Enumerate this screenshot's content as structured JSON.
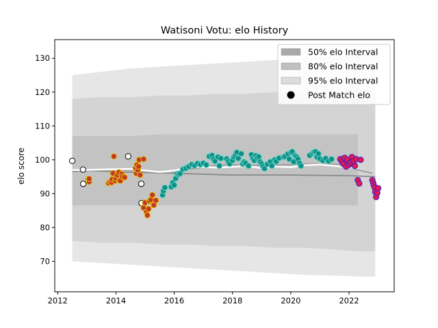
{
  "chart_data": {
    "type": "scatter",
    "title": "Watisoni Votu: elo History",
    "xlabel": "",
    "ylabel": "elo score",
    "xlim": [
      2011.9,
      2023.55
    ],
    "ylim": [
      61,
      135.5
    ],
    "x_ticks": [
      2012,
      2014,
      2016,
      2018,
      2020,
      2022
    ],
    "y_ticks": [
      70,
      80,
      90,
      100,
      110,
      120,
      130
    ],
    "grid": false,
    "legend": {
      "placement": "top-right",
      "entries": [
        {
          "label": "50% elo Interval",
          "kind": "patch",
          "color": "#a9a9a9"
        },
        {
          "label": "80% elo Interval",
          "kind": "patch",
          "color": "#bfbfbf"
        },
        {
          "label": "95% elo Interval",
          "kind": "patch",
          "color": "#dcdcdc"
        },
        {
          "label": "Post Match elo",
          "kind": "marker",
          "color": "#000000"
        }
      ]
    },
    "bands": [
      {
        "name": "95% elo Interval",
        "color": "#e2e2e2",
        "x": [
          2012.5,
          2013.5,
          2014.5,
          2015.5,
          2016.5,
          2017.5,
          2018.5,
          2019.5,
          2020.5,
          2021.5,
          2022.3,
          2022.9
        ],
        "upper": [
          125,
          126,
          127,
          127.5,
          128,
          128.5,
          129,
          129.5,
          130,
          130.5,
          131,
          131
        ],
        "lower": [
          70,
          69.5,
          69,
          68.5,
          68,
          67.5,
          67,
          66.5,
          66,
          65.8,
          65.5,
          65.5
        ]
      },
      {
        "name": "80% elo Interval",
        "color": "#d0d0d0",
        "x": [
          2012.5,
          2013.5,
          2014.5,
          2015.5,
          2016.5,
          2017.5,
          2018.5,
          2019.5,
          2020.5,
          2021.5,
          2022.3,
          2022.9
        ],
        "upper": [
          118,
          118.5,
          118.5,
          119,
          119,
          119.5,
          119.5,
          120,
          120,
          120,
          121,
          120
        ],
        "lower": [
          76,
          75.5,
          75.5,
          75,
          75,
          74.5,
          74.5,
          74,
          74,
          73.5,
          73,
          73
        ]
      },
      {
        "name": "50% elo Interval",
        "color": "#bfbfbf",
        "x": [
          2012.5,
          2013.5,
          2014.5,
          2015.5,
          2016.5,
          2017.5,
          2018.5,
          2019.5,
          2020.5,
          2021.5,
          2022.3
        ],
        "upper": [
          107,
          107,
          107,
          107.5,
          107.5,
          107.5,
          107.5,
          107.5,
          107.5,
          107.5,
          107.5
        ],
        "lower": [
          86.5,
          86.5,
          86.5,
          86.5,
          86.5,
          86.5,
          86.5,
          86.5,
          86.5,
          86.5,
          86.5
        ]
      }
    ],
    "lines": [
      {
        "name": "mean",
        "color": "#888888",
        "x": [
          2012.5,
          2014.0,
          2016.0,
          2018.0,
          2020.0,
          2022.0,
          2022.9
        ],
        "y": [
          97,
          96.5,
          96,
          95.5,
          95.5,
          95.3,
          95
        ]
      },
      {
        "name": "trend",
        "color": "#999999",
        "x": [
          2012.5,
          2013.5,
          2014.5,
          2015.2,
          2015.8,
          2016.3,
          2016.8,
          2017.5,
          2018.2,
          2019.0,
          2019.8,
          2020.5,
          2021.2,
          2021.8,
          2022.3,
          2022.8
        ],
        "y": [
          96.5,
          97,
          97,
          96.5,
          96,
          97,
          97.5,
          98.5,
          98.5,
          98.3,
          98.5,
          98.8,
          98.8,
          98.5,
          97,
          96
        ]
      },
      {
        "name": "elo",
        "color": "#ffffff",
        "x": [
          2012.5,
          2013.0,
          2013.8,
          2014.5,
          2015.0,
          2015.5,
          2016.0,
          2016.5,
          2017.0,
          2017.5,
          2018.0,
          2018.5,
          2019.0,
          2019.5,
          2020.0,
          2020.5,
          2021.0,
          2021.5,
          2022.0,
          2022.3
        ],
        "y": [
          97,
          97,
          97.2,
          97.3,
          96.8,
          96.4,
          96.8,
          97.8,
          97.9,
          97.7,
          97.9,
          98.2,
          97.5,
          98,
          97.8,
          98.4,
          98.6,
          98.2,
          97.8,
          97.5
        ]
      }
    ],
    "series": [
      {
        "color": "#ffffff",
        "edge": "#000000",
        "points": [
          [
            2012.5,
            99.7
          ],
          [
            2012.87,
            97.1
          ],
          [
            2012.88,
            92.9
          ],
          [
            2014.42,
            101
          ],
          [
            2014.87,
            92.9
          ],
          [
            2014.88,
            87.2
          ]
        ]
      },
      {
        "color": "#c0392b",
        "edge": "#e6c200",
        "points": [
          [
            2013.05,
            94.2
          ],
          [
            2013.08,
            93.5
          ],
          [
            2013.08,
            94.4
          ],
          [
            2013.75,
            93.1
          ],
          [
            2013.8,
            93.5
          ],
          [
            2013.85,
            93.3
          ],
          [
            2013.87,
            94.2
          ],
          [
            2013.9,
            96.0
          ],
          [
            2013.93,
            101.0
          ],
          [
            2013.97,
            93.8
          ],
          [
            2014.0,
            94.5
          ],
          [
            2014.05,
            95.5
          ],
          [
            2014.1,
            96.3
          ],
          [
            2014.12,
            94.0
          ],
          [
            2014.15,
            93.8
          ],
          [
            2014.2,
            95.8
          ],
          [
            2014.22,
            95.0
          ],
          [
            2014.3,
            94.8
          ],
          [
            2014.68,
            97.5
          ],
          [
            2014.7,
            96.0
          ],
          [
            2014.72,
            98.5
          ],
          [
            2014.75,
            97.0
          ],
          [
            2014.78,
            98.0
          ],
          [
            2014.8,
            100.0
          ],
          [
            2014.83,
            95.5
          ],
          [
            2014.95,
            100.2
          ],
          [
            2014.95,
            85.8
          ],
          [
            2015.0,
            87.3
          ],
          [
            2015.05,
            84.6
          ],
          [
            2015.08,
            83.6
          ],
          [
            2015.12,
            85.5
          ],
          [
            2015.15,
            87.8
          ],
          [
            2015.2,
            88.2
          ],
          [
            2015.25,
            89.6
          ],
          [
            2015.3,
            86.6
          ],
          [
            2015.37,
            88.0
          ]
        ]
      },
      {
        "color": "#0e8f86",
        "edge": "#66d4c8",
        "points": [
          [
            2015.6,
            89.6
          ],
          [
            2015.63,
            90.8
          ],
          [
            2015.68,
            91.8
          ],
          [
            2015.9,
            92.0
          ],
          [
            2015.95,
            93.2
          ],
          [
            2016.0,
            92.5
          ],
          [
            2016.05,
            94.5
          ],
          [
            2016.1,
            95.8
          ],
          [
            2016.15,
            95.6
          ],
          [
            2016.2,
            95.9
          ],
          [
            2016.3,
            97.2
          ],
          [
            2016.4,
            97.5
          ],
          [
            2016.5,
            98.0
          ],
          [
            2016.6,
            98.6
          ],
          [
            2016.7,
            98.3
          ],
          [
            2016.8,
            98.9
          ],
          [
            2016.9,
            98.6
          ],
          [
            2017.0,
            99.0
          ],
          [
            2017.1,
            98.5
          ],
          [
            2017.2,
            101.0
          ],
          [
            2017.3,
            101.3
          ],
          [
            2017.35,
            100.2
          ],
          [
            2017.4,
            99.6
          ],
          [
            2017.5,
            100.8
          ],
          [
            2017.55,
            98.2
          ],
          [
            2017.6,
            100.4
          ],
          [
            2017.8,
            100.3
          ],
          [
            2017.85,
            99.5
          ],
          [
            2017.9,
            98.8
          ],
          [
            2018.0,
            99.8
          ],
          [
            2018.05,
            100.8
          ],
          [
            2018.1,
            101.4
          ],
          [
            2018.15,
            102.2
          ],
          [
            2018.2,
            100.4
          ],
          [
            2018.3,
            101.8
          ],
          [
            2018.35,
            98.8
          ],
          [
            2018.4,
            99.4
          ],
          [
            2018.45,
            99.0
          ],
          [
            2018.55,
            98.2
          ],
          [
            2018.65,
            101.5
          ],
          [
            2018.7,
            100.4
          ],
          [
            2018.75,
            99.8
          ],
          [
            2018.8,
            101.2
          ],
          [
            2018.85,
            100.5
          ],
          [
            2018.9,
            100.9
          ],
          [
            2018.95,
            99.4
          ],
          [
            2019.0,
            98.8
          ],
          [
            2019.05,
            98.0
          ],
          [
            2019.1,
            97.4
          ],
          [
            2019.2,
            98.7
          ],
          [
            2019.3,
            99.4
          ],
          [
            2019.35,
            98.2
          ],
          [
            2019.45,
            100.0
          ],
          [
            2019.5,
            99.5
          ],
          [
            2019.6,
            100.5
          ],
          [
            2019.75,
            100.8
          ],
          [
            2019.8,
            101.0
          ],
          [
            2019.9,
            101.7
          ],
          [
            2019.95,
            100.2
          ],
          [
            2020.0,
            102.1
          ],
          [
            2020.05,
            102.4
          ],
          [
            2020.1,
            99.4
          ],
          [
            2020.15,
            101.2
          ],
          [
            2020.2,
            100.8
          ],
          [
            2020.25,
            100.2
          ],
          [
            2020.3,
            99.0
          ],
          [
            2020.35,
            98.2
          ],
          [
            2020.65,
            101.3
          ],
          [
            2020.75,
            101.9
          ],
          [
            2020.8,
            102.3
          ],
          [
            2020.85,
            102.4
          ],
          [
            2020.9,
            100.8
          ],
          [
            2020.95,
            101.8
          ],
          [
            2021.0,
            100.3
          ],
          [
            2021.1,
            99.8
          ],
          [
            2021.2,
            100.4
          ],
          [
            2021.3,
            99.6
          ],
          [
            2021.4,
            100.2
          ]
        ]
      },
      {
        "color": "#e6194b",
        "edge": "#3a1fd6",
        "points": [
          [
            2021.7,
            100.2
          ],
          [
            2021.75,
            99.5
          ],
          [
            2021.8,
            98.8
          ],
          [
            2021.85,
            100.6
          ],
          [
            2021.9,
            98.0
          ],
          [
            2021.95,
            100.0
          ],
          [
            2022.0,
            98.5
          ],
          [
            2022.05,
            99.2
          ],
          [
            2022.1,
            100.8
          ],
          [
            2022.15,
            99.6
          ],
          [
            2022.2,
            98.2
          ],
          [
            2022.25,
            100.2
          ],
          [
            2022.3,
            94.0
          ],
          [
            2022.35,
            93.0
          ],
          [
            2022.4,
            100.0
          ],
          [
            2022.8,
            94.0
          ],
          [
            2022.83,
            93.2
          ],
          [
            2022.85,
            92.5
          ],
          [
            2022.88,
            91.8
          ],
          [
            2022.9,
            90.5
          ],
          [
            2022.93,
            89.0
          ],
          [
            2022.97,
            90.2
          ],
          [
            2023.0,
            91.6
          ]
        ]
      }
    ]
  }
}
